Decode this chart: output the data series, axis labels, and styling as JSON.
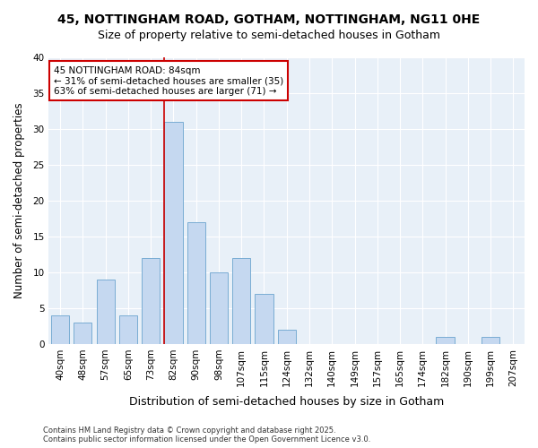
{
  "title_line1": "45, NOTTINGHAM ROAD, GOTHAM, NOTTINGHAM, NG11 0HE",
  "title_line2": "Size of property relative to semi-detached houses in Gotham",
  "xlabel": "Distribution of semi-detached houses by size in Gotham",
  "ylabel": "Number of semi-detached properties",
  "bin_labels": [
    "40sqm",
    "48sqm",
    "57sqm",
    "65sqm",
    "73sqm",
    "82sqm",
    "90sqm",
    "98sqm",
    "107sqm",
    "115sqm",
    "124sqm",
    "132sqm",
    "140sqm",
    "149sqm",
    "157sqm",
    "165sqm",
    "174sqm",
    "182sqm",
    "190sqm",
    "199sqm",
    "207sqm"
  ],
  "bar_values": [
    4,
    3,
    9,
    4,
    12,
    31,
    17,
    10,
    12,
    7,
    2,
    0,
    0,
    0,
    0,
    0,
    0,
    1,
    0,
    1,
    0
  ],
  "bar_color": "#c5d8f0",
  "bar_edge_color": "#7aadd4",
  "vline_index": 5,
  "annotation_text_line1": "45 NOTTINGHAM ROAD: 84sqm",
  "annotation_text_line2": "← 31% of semi-detached houses are smaller (35)",
  "annotation_text_line3": "63% of semi-detached houses are larger (71) →",
  "annotation_box_color": "#ffffff",
  "annotation_box_edge_color": "#cc0000",
  "vline_color": "#cc0000",
  "ylim": [
    0,
    40
  ],
  "yticks": [
    0,
    5,
    10,
    15,
    20,
    25,
    30,
    35,
    40
  ],
  "background_color": "#ffffff",
  "plot_background": "#e8f0f8",
  "footer_text": "Contains HM Land Registry data © Crown copyright and database right 2025.\nContains public sector information licensed under the Open Government Licence v3.0.",
  "grid_color": "#ffffff"
}
